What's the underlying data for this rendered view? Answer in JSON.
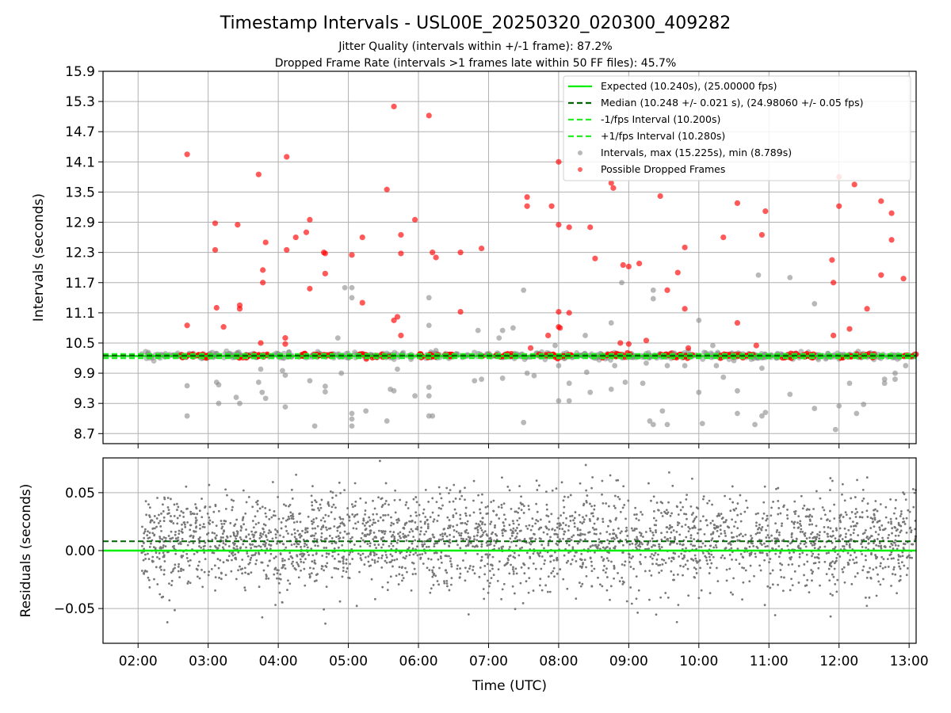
{
  "chart_data": [
    {
      "type": "scatter",
      "title": "Timestamp Intervals - USL00E_20250320_020300_409282",
      "subtitle_lines": [
        "Jitter Quality (intervals within +/-1 frame): 87.2%",
        "Dropped Frame Rate (intervals >1 frames late within 50 FF files): 45.7%"
      ],
      "xlabel": "",
      "ylabel": "Intervals (seconds)",
      "x_unit": "hours UTC",
      "xlim": [
        1.5,
        13.1
      ],
      "ylim": [
        8.5,
        15.9
      ],
      "yticks": [
        8.7,
        9.3,
        9.9,
        10.5,
        11.1,
        11.7,
        12.3,
        12.9,
        13.5,
        14.1,
        14.7,
        15.3,
        15.9
      ],
      "ytick_labels": [
        "8.7",
        "9.3",
        "9.9",
        "10.5",
        "11.1",
        "11.7",
        "12.3",
        "12.9",
        "13.5",
        "14.1",
        "14.7",
        "15.3",
        "15.9"
      ],
      "grid": true,
      "legend_position": "top-right",
      "legend": [
        "Expected (10.240s), (25.00000 fps)",
        "Median (10.248 +/- 0.021 s), (24.98060 +/- 0.05 fps)",
        "-1/fps Interval (10.200s)",
        "+1/fps Interval (10.280s)",
        "Intervals, max (15.225s), min (8.789s)",
        "Possible Dropped Frames"
      ],
      "lines": {
        "expected": 10.24,
        "median": 10.248,
        "minus_interval": 10.2,
        "plus_interval": 10.28
      },
      "colors": {
        "expected": "#00ee00",
        "median": "#006400",
        "interval_lines": "#22ee22",
        "intervals": "#888888",
        "dropped": "#ff0000",
        "grid": "#b0b0b0"
      },
      "stats": {
        "max_interval": 15.225,
        "min_interval": 8.789
      },
      "band_x": [
        2.1,
        13.1
      ],
      "intervals_outliers": [
        [
          2.05,
          10.28
        ],
        [
          2.7,
          9.65
        ],
        [
          2.7,
          9.05
        ],
        [
          3.12,
          9.72
        ],
        [
          3.15,
          9.67
        ],
        [
          3.15,
          9.3
        ],
        [
          3.4,
          9.42
        ],
        [
          3.45,
          9.3
        ],
        [
          3.42,
          10.3
        ],
        [
          3.72,
          9.72
        ],
        [
          3.75,
          9.98
        ],
        [
          3.77,
          9.52
        ],
        [
          3.82,
          9.4
        ],
        [
          4.06,
          9.95
        ],
        [
          4.1,
          9.86
        ],
        [
          4.1,
          9.23
        ],
        [
          4.45,
          9.75
        ],
        [
          4.52,
          8.85
        ],
        [
          4.67,
          9.64
        ],
        [
          4.67,
          9.53
        ],
        [
          4.85,
          10.6
        ],
        [
          4.9,
          9.9
        ],
        [
          4.95,
          11.6
        ],
        [
          5.05,
          11.6
        ],
        [
          5.05,
          11.4
        ],
        [
          5.05,
          9.1
        ],
        [
          5.05,
          8.99
        ],
        [
          5.05,
          8.85
        ],
        [
          5.25,
          9.15
        ],
        [
          5.55,
          8.95
        ],
        [
          5.6,
          9.58
        ],
        [
          5.65,
          9.55
        ],
        [
          5.7,
          9.98
        ],
        [
          5.95,
          9.45
        ],
        [
          6.15,
          11.4
        ],
        [
          6.15,
          10.85
        ],
        [
          6.15,
          9.62
        ],
        [
          6.15,
          9.45
        ],
        [
          6.15,
          9.05
        ],
        [
          6.2,
          9.05
        ],
        [
          6.25,
          10.35
        ],
        [
          6.8,
          9.75
        ],
        [
          6.85,
          10.75
        ],
        [
          6.9,
          9.78
        ],
        [
          7.15,
          10.6
        ],
        [
          7.2,
          9.8
        ],
        [
          7.2,
          10.75
        ],
        [
          7.35,
          10.8
        ],
        [
          7.5,
          11.55
        ],
        [
          7.5,
          8.92
        ],
        [
          7.55,
          9.9
        ],
        [
          7.65,
          9.85
        ],
        [
          7.95,
          10.45
        ],
        [
          8.0,
          9.35
        ],
        [
          8.0,
          10.05
        ],
        [
          8.15,
          9.7
        ],
        [
          8.15,
          9.35
        ],
        [
          8.38,
          10.65
        ],
        [
          8.4,
          9.92
        ],
        [
          8.45,
          9.52
        ],
        [
          8.75,
          9.58
        ],
        [
          8.75,
          10.9
        ],
        [
          8.8,
          10.05
        ],
        [
          8.9,
          11.7
        ],
        [
          8.95,
          9.72
        ],
        [
          9.2,
          9.7
        ],
        [
          9.25,
          10.1
        ],
        [
          9.3,
          8.95
        ],
        [
          9.35,
          11.55
        ],
        [
          9.35,
          11.38
        ],
        [
          9.35,
          8.88
        ],
        [
          9.48,
          9.15
        ],
        [
          9.55,
          10.05
        ],
        [
          9.55,
          8.88
        ],
        [
          9.65,
          10.3
        ],
        [
          9.8,
          10.05
        ],
        [
          9.85,
          10.35
        ],
        [
          10.0,
          10.95
        ],
        [
          10.0,
          9.52
        ],
        [
          10.05,
          8.9
        ],
        [
          10.2,
          10.45
        ],
        [
          10.25,
          10.05
        ],
        [
          10.35,
          9.82
        ],
        [
          10.5,
          10.15
        ],
        [
          10.55,
          9.55
        ],
        [
          10.55,
          9.1
        ],
        [
          10.8,
          8.88
        ],
        [
          10.85,
          11.85
        ],
        [
          10.85,
          10.2
        ],
        [
          10.9,
          10.0
        ],
        [
          10.9,
          9.05
        ],
        [
          10.95,
          9.12
        ],
        [
          11.3,
          11.8
        ],
        [
          11.3,
          9.48
        ],
        [
          11.65,
          9.2
        ],
        [
          11.65,
          11.28
        ],
        [
          11.95,
          8.78
        ],
        [
          12.0,
          9.25
        ],
        [
          12.15,
          9.7
        ],
        [
          12.25,
          9.1
        ],
        [
          12.35,
          9.28
        ],
        [
          12.65,
          9.78
        ],
        [
          12.65,
          9.7
        ],
        [
          12.8,
          9.9
        ],
        [
          12.8,
          9.78
        ],
        [
          12.95,
          10.05
        ]
      ],
      "dropped_frames": [
        [
          2.7,
          14.25
        ],
        [
          2.7,
          10.85
        ],
        [
          3.1,
          12.88
        ],
        [
          3.1,
          12.35
        ],
        [
          3.12,
          11.2
        ],
        [
          3.22,
          10.82
        ],
        [
          3.42,
          12.85
        ],
        [
          3.45,
          11.25
        ],
        [
          3.45,
          11.18
        ],
        [
          3.72,
          13.85
        ],
        [
          3.78,
          11.95
        ],
        [
          3.78,
          11.7
        ],
        [
          3.82,
          12.5
        ],
        [
          3.75,
          10.5
        ],
        [
          4.12,
          14.2
        ],
        [
          4.12,
          12.35
        ],
        [
          4.1,
          10.6
        ],
        [
          4.1,
          10.48
        ],
        [
          4.25,
          12.6
        ],
        [
          4.4,
          12.7
        ],
        [
          4.45,
          12.95
        ],
        [
          4.45,
          11.58
        ],
        [
          4.65,
          12.3
        ],
        [
          4.67,
          12.28
        ],
        [
          4.67,
          11.88
        ],
        [
          5.05,
          12.25
        ],
        [
          5.2,
          12.6
        ],
        [
          5.2,
          11.3
        ],
        [
          5.55,
          13.55
        ],
        [
          5.65,
          15.2
        ],
        [
          5.65,
          10.95
        ],
        [
          5.7,
          11.02
        ],
        [
          5.75,
          12.65
        ],
        [
          5.75,
          12.28
        ],
        [
          5.75,
          10.65
        ],
        [
          5.95,
          12.95
        ],
        [
          6.15,
          15.02
        ],
        [
          6.2,
          12.3
        ],
        [
          6.25,
          12.2
        ],
        [
          6.6,
          11.12
        ],
        [
          6.6,
          12.3
        ],
        [
          6.9,
          12.38
        ],
        [
          7.55,
          13.4
        ],
        [
          7.55,
          13.22
        ],
        [
          7.6,
          10.4
        ],
        [
          7.85,
          10.65
        ],
        [
          7.9,
          13.22
        ],
        [
          8.0,
          14.1
        ],
        [
          8.0,
          12.85
        ],
        [
          8.0,
          11.12
        ],
        [
          8.0,
          10.82
        ],
        [
          8.02,
          10.8
        ],
        [
          8.15,
          12.8
        ],
        [
          8.15,
          11.1
        ],
        [
          8.45,
          12.8
        ],
        [
          8.52,
          12.18
        ],
        [
          8.75,
          13.68
        ],
        [
          8.78,
          13.58
        ],
        [
          8.88,
          10.5
        ],
        [
          8.92,
          12.05
        ],
        [
          9.0,
          12.02
        ],
        [
          9.0,
          10.48
        ],
        [
          9.15,
          12.08
        ],
        [
          9.25,
          10.55
        ],
        [
          9.45,
          13.42
        ],
        [
          9.55,
          11.55
        ],
        [
          9.7,
          11.9
        ],
        [
          9.8,
          12.4
        ],
        [
          9.8,
          11.18
        ],
        [
          9.85,
          10.4
        ],
        [
          10.35,
          12.6
        ],
        [
          10.55,
          13.28
        ],
        [
          10.55,
          10.9
        ],
        [
          10.82,
          10.45
        ],
        [
          10.9,
          12.65
        ],
        [
          10.95,
          13.12
        ],
        [
          11.9,
          12.15
        ],
        [
          11.92,
          11.7
        ],
        [
          11.92,
          10.65
        ],
        [
          12.0,
          13.8
        ],
        [
          12.0,
          13.22
        ],
        [
          12.15,
          10.78
        ],
        [
          12.22,
          13.65
        ],
        [
          12.4,
          11.18
        ],
        [
          12.6,
          13.32
        ],
        [
          12.6,
          11.85
        ],
        [
          12.75,
          13.08
        ],
        [
          12.75,
          12.55
        ],
        [
          12.92,
          11.78
        ]
      ]
    },
    {
      "type": "scatter",
      "title": "",
      "xlabel": "Time (UTC)",
      "ylabel": "Residuals (seconds)",
      "xlim": [
        1.5,
        13.1
      ],
      "ylim": [
        -0.08,
        0.08
      ],
      "yticks": [
        -0.05,
        0.0,
        0.05
      ],
      "ytick_labels": [
        "−0.05",
        "0.00",
        "0.05"
      ],
      "xticks": [
        2,
        3,
        4,
        5,
        6,
        7,
        8,
        9,
        10,
        11,
        12,
        13
      ],
      "xtick_labels": [
        "02:00",
        "03:00",
        "04:00",
        "05:00",
        "06:00",
        "07:00",
        "08:00",
        "09:00",
        "10:00",
        "11:00",
        "12:00",
        "13:00"
      ],
      "grid": true,
      "lines": {
        "zero": 0.0,
        "median_offset": 0.008
      },
      "points_x_range": [
        2.05,
        13.1
      ],
      "points_center": 0.008,
      "points_spread_sd": 0.021,
      "points_approx_count": 2900,
      "points_color": "#777777"
    }
  ]
}
